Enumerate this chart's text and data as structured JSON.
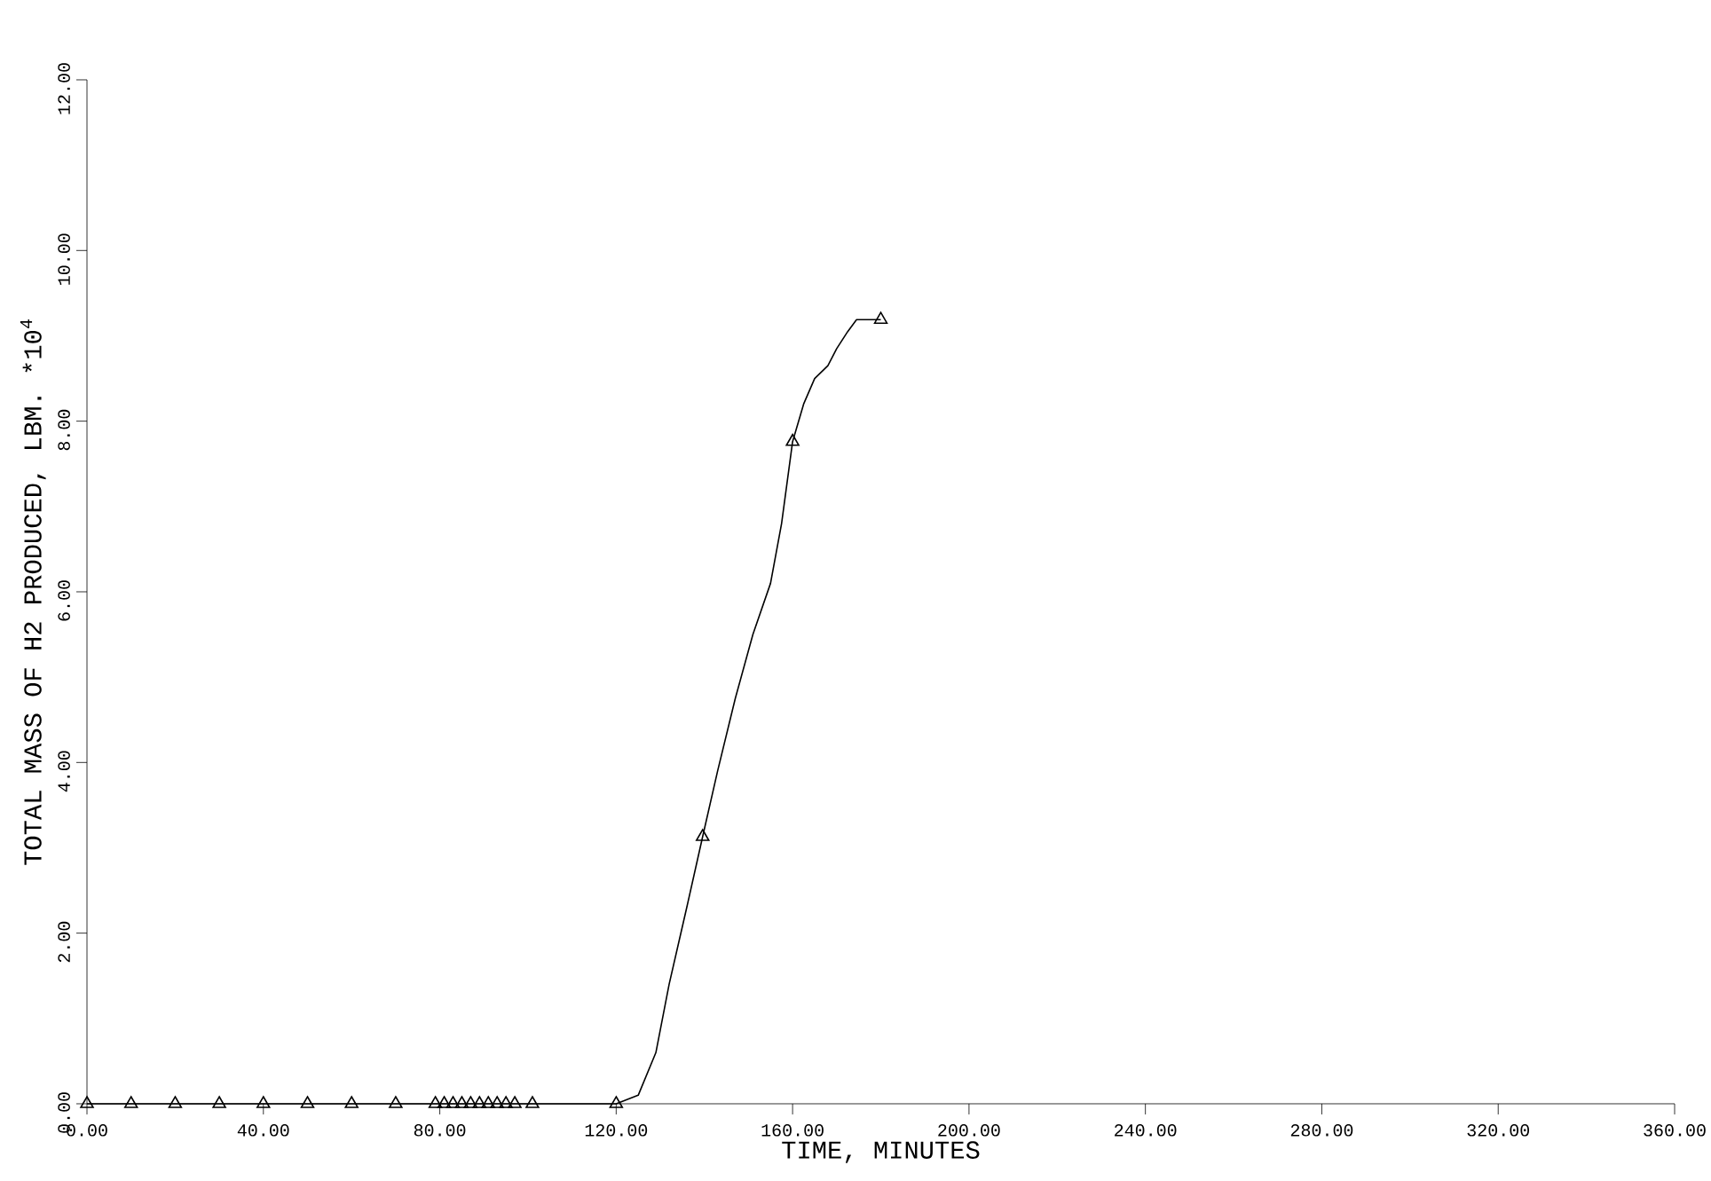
{
  "chart_data": {
    "type": "line",
    "xlabel": "TIME, MINUTES",
    "ylabel": "TOTAL MASS OF H2 PRODUCED, LBM.   *10$^{4}$",
    "xlim": [
      0,
      360
    ],
    "ylim": [
      0,
      12
    ],
    "xticks": [
      {
        "value": 0,
        "label": "0.00"
      },
      {
        "value": 40,
        "label": "40.00"
      },
      {
        "value": 80,
        "label": "80.00"
      },
      {
        "value": 120,
        "label": "120.00"
      },
      {
        "value": 160,
        "label": "160.00"
      },
      {
        "value": 200,
        "label": "200.00"
      },
      {
        "value": 240,
        "label": "240.00"
      },
      {
        "value": 280,
        "label": "280.00"
      },
      {
        "value": 320,
        "label": "320.00"
      },
      {
        "value": 360,
        "label": "360.00"
      }
    ],
    "yticks": [
      {
        "value": 0,
        "label": "0.00"
      },
      {
        "value": 2,
        "label": "2.00"
      },
      {
        "value": 4,
        "label": "4.00"
      },
      {
        "value": 6,
        "label": "6.00"
      },
      {
        "value": 8,
        "label": "8.00"
      },
      {
        "value": 10,
        "label": "10.00"
      },
      {
        "value": 12,
        "label": "12.00"
      }
    ],
    "series": [
      {
        "color": "#000000",
        "marker": "none",
        "line_style": "solid",
        "x": [
          0,
          120,
          125,
          129,
          132,
          136,
          139.6,
          143,
          147,
          151,
          155,
          157.5,
          160,
          162.5,
          165,
          168,
          170,
          172.5,
          174.5,
          180
        ],
        "values": [
          0,
          0,
          0.1,
          0.6,
          1.4,
          2.3,
          3.13,
          3.9,
          4.75,
          5.5,
          6.1,
          6.8,
          7.76,
          8.2,
          8.5,
          8.65,
          8.85,
          9.05,
          9.19,
          9.19
        ]
      },
      {
        "type": "scatter",
        "color": "#000000",
        "marker": "triangle",
        "x": [
          0,
          10,
          20,
          30,
          40,
          50,
          60,
          70,
          79,
          81,
          83,
          85,
          87,
          89,
          91,
          93,
          95,
          97,
          101,
          120,
          139.6,
          160,
          180
        ],
        "values": [
          0,
          0,
          0,
          0,
          0,
          0,
          0,
          0,
          0,
          0,
          0,
          0,
          0,
          0,
          0,
          0,
          0,
          0,
          0,
          0,
          3.13,
          7.76,
          9.19
        ]
      }
    ]
  }
}
